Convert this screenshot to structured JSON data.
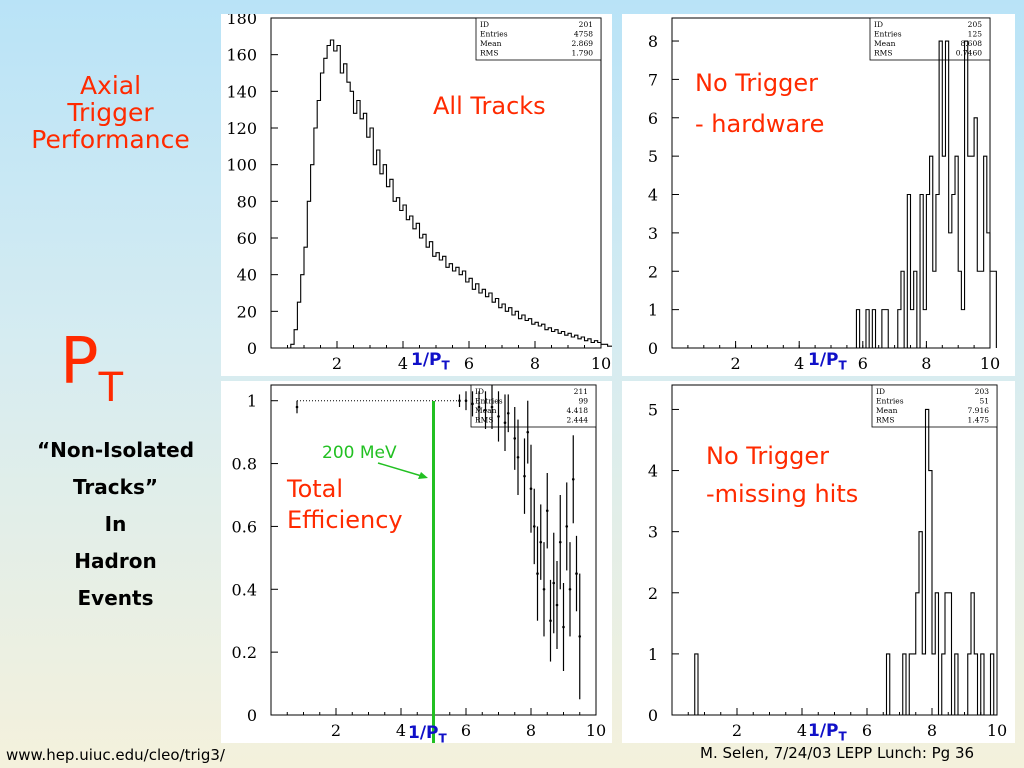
{
  "slide": {
    "side_title": [
      "Axial",
      "Trigger",
      "Performance"
    ],
    "pt_symbol": "P",
    "pt_subscript": "T",
    "side_list": [
      "“Non-Isolated",
      "Tracks”",
      "In",
      "Hadron",
      "Events"
    ],
    "footer_url": "www.hep.uiuc.edu/cleo/trig3/",
    "footer_cite": "M. Selen, 7/24/03 LEPP Lunch: Pg 36",
    "annotation_200mev": "200 MeV",
    "xlabel_main": "1/P",
    "xlabel_sub": "T"
  },
  "colors": {
    "label_red": "#ff2a00",
    "axis_label_blue": "#1010c8",
    "marker_green": "#22c022"
  },
  "chart_data": [
    {
      "type": "histogram",
      "label": "All Tracks",
      "xlabel": "1/PT",
      "xlim": [
        0,
        10
      ],
      "ylim": [
        0,
        180
      ],
      "xticks": [
        2,
        4,
        6,
        8,
        10
      ],
      "yticks": [
        0,
        20,
        40,
        60,
        80,
        100,
        120,
        140,
        160,
        180
      ],
      "stats": [
        [
          "ID",
          "201"
        ],
        [
          "Entries",
          "4758"
        ],
        [
          "Mean",
          "2.869"
        ],
        [
          "RMS",
          "1.790"
        ]
      ],
      "bin_edges_start": 0.4,
      "bin_width": 0.1,
      "values": [
        0,
        0,
        2,
        10,
        25,
        40,
        55,
        80,
        100,
        120,
        135,
        150,
        158,
        165,
        168,
        162,
        165,
        150,
        155,
        145,
        140,
        128,
        135,
        125,
        128,
        115,
        120,
        100,
        108,
        95,
        100,
        88,
        92,
        80,
        82,
        75,
        78,
        70,
        72,
        65,
        68,
        60,
        62,
        55,
        58,
        50,
        52,
        48,
        50,
        44,
        46,
        42,
        44,
        40,
        42,
        36,
        38,
        32,
        35,
        30,
        32,
        28,
        30,
        25,
        27,
        22,
        24,
        20,
        22,
        18,
        20,
        16,
        18,
        15,
        16,
        13,
        14,
        12,
        13,
        10,
        11,
        9,
        10,
        8,
        9,
        7,
        8,
        6,
        7,
        5,
        6,
        4,
        5,
        3,
        4,
        3,
        2,
        2,
        1,
        1
      ]
    },
    {
      "type": "histogram",
      "label": "No Trigger - hardware",
      "label_lines": [
        "No Trigger",
        "- hardware"
      ],
      "xlabel": "1/PT",
      "xlim": [
        0,
        10
      ],
      "ylim": [
        0,
        8.6
      ],
      "xticks": [
        2,
        4,
        6,
        8,
        10
      ],
      "yticks": [
        0,
        1,
        2,
        3,
        4,
        5,
        6,
        7,
        8
      ],
      "stats": [
        [
          "ID",
          "205"
        ],
        [
          "Entries",
          "125"
        ],
        [
          "Mean",
          "8.608"
        ],
        [
          "RMS",
          "0.7460"
        ]
      ],
      "bin_edges_start": 5.0,
      "bin_width": 0.1,
      "values": [
        0,
        0,
        0,
        0,
        0,
        0,
        0,
        0,
        1,
        0,
        0,
        1,
        0,
        1,
        0,
        0,
        1,
        1,
        0,
        0,
        0,
        1,
        2,
        0,
        4,
        1,
        2,
        0,
        4,
        1,
        4,
        5,
        2,
        4,
        8,
        5,
        8,
        3,
        4,
        5,
        2,
        1,
        8,
        5,
        5,
        6,
        2,
        2,
        5,
        3,
        2,
        2
      ]
    },
    {
      "type": "errorbar",
      "label": "Total Efficiency",
      "label_lines": [
        "Total",
        "Efficiency"
      ],
      "xlabel": "1/PT",
      "xlim": [
        0,
        10
      ],
      "ylim": [
        0,
        1.05
      ],
      "xticks": [
        2,
        4,
        6,
        8,
        10
      ],
      "yticks": [
        0,
        0.2,
        0.4,
        0.6,
        0.8,
        1
      ],
      "stats": [
        [
          "ID",
          "211"
        ],
        [
          "Entries",
          "99"
        ],
        [
          "Mean",
          "4.418"
        ],
        [
          "RMS",
          "2.444"
        ]
      ],
      "vline_x": 5.0,
      "points": [
        [
          0.8,
          0.98,
          0.02
        ],
        [
          5.8,
          1.0,
          0.02
        ],
        [
          6.0,
          1.0,
          0.03
        ],
        [
          6.2,
          0.99,
          0.04
        ],
        [
          6.4,
          0.98,
          0.05
        ],
        [
          6.6,
          0.97,
          0.06
        ],
        [
          6.8,
          0.98,
          0.07
        ],
        [
          7.0,
          0.95,
          0.08
        ],
        [
          7.2,
          0.93,
          0.09
        ],
        [
          7.3,
          0.96,
          0.06
        ],
        [
          7.5,
          0.88,
          0.1
        ],
        [
          7.6,
          0.82,
          0.12
        ],
        [
          7.8,
          0.76,
          0.12
        ],
        [
          7.9,
          0.9,
          0.1
        ],
        [
          8.0,
          0.72,
          0.14
        ],
        [
          8.1,
          0.6,
          0.12
        ],
        [
          8.2,
          0.45,
          0.15
        ],
        [
          8.3,
          0.55,
          0.12
        ],
        [
          8.4,
          0.4,
          0.15
        ],
        [
          8.5,
          0.65,
          0.12
        ],
        [
          8.6,
          0.3,
          0.13
        ],
        [
          8.7,
          0.42,
          0.16
        ],
        [
          8.8,
          0.35,
          0.14
        ],
        [
          8.9,
          0.55,
          0.15
        ],
        [
          9.0,
          0.28,
          0.14
        ],
        [
          9.1,
          0.6,
          0.14
        ],
        [
          9.2,
          0.4,
          0.15
        ],
        [
          9.3,
          0.75,
          0.14
        ],
        [
          9.4,
          0.45,
          0.12
        ],
        [
          9.5,
          0.25,
          0.2
        ]
      ]
    },
    {
      "type": "histogram",
      "label": "No Trigger -missing hits",
      "label_lines": [
        "No Trigger",
        "-missing hits"
      ],
      "xlabel": "1/PT",
      "xlim": [
        0,
        10
      ],
      "ylim": [
        0,
        5.4
      ],
      "xticks": [
        2,
        4,
        6,
        8,
        10
      ],
      "yticks": [
        0,
        1,
        2,
        3,
        4,
        5
      ],
      "stats": [
        [
          "ID",
          "203"
        ],
        [
          "Entries",
          "51"
        ],
        [
          "Mean",
          "7.916"
        ],
        [
          "RMS",
          "1.475"
        ]
      ],
      "bin_edges_start": 0.0,
      "bin_width": 0.1,
      "values": [
        0,
        0,
        0,
        0,
        0,
        0,
        0,
        1,
        0,
        0,
        0,
        0,
        0,
        0,
        0,
        0,
        0,
        0,
        0,
        0,
        0,
        0,
        0,
        0,
        0,
        0,
        0,
        0,
        0,
        0,
        0,
        0,
        0,
        0,
        0,
        0,
        0,
        0,
        0,
        0,
        0,
        0,
        0,
        0,
        0,
        0,
        0,
        0,
        0,
        0,
        0,
        0,
        0,
        0,
        0,
        0,
        0,
        0,
        0,
        0,
        0,
        0,
        0,
        0,
        0,
        0,
        1,
        0,
        0,
        0,
        0,
        1,
        0,
        1,
        1,
        2,
        3,
        1,
        5,
        4,
        1,
        2,
        0,
        1,
        2,
        2,
        0,
        1,
        0,
        0,
        0,
        1,
        2,
        1,
        0,
        1,
        0,
        0,
        1,
        0
      ]
    }
  ]
}
